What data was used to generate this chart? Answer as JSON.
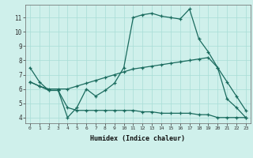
{
  "xlabel": "Humidex (Indice chaleur)",
  "bg_color": "#cff0eb",
  "line_color": "#1a6b5e",
  "x_ticks": [
    0,
    1,
    2,
    3,
    4,
    5,
    6,
    7,
    8,
    9,
    10,
    11,
    12,
    13,
    14,
    15,
    16,
    17,
    18,
    19,
    20,
    21,
    22,
    23
  ],
  "y_ticks": [
    4,
    5,
    6,
    7,
    8,
    9,
    10,
    11
  ],
  "ylim": [
    3.6,
    11.9
  ],
  "xlim": [
    -0.5,
    23.5
  ],
  "line1_x": [
    0,
    1,
    2,
    3,
    4,
    5,
    6,
    7,
    8,
    9,
    10,
    11,
    12,
    13,
    14,
    15,
    16,
    17,
    18,
    19,
    20,
    21,
    22,
    23
  ],
  "line1_y": [
    7.5,
    6.5,
    5.9,
    5.9,
    4.0,
    4.7,
    6.0,
    5.5,
    5.9,
    6.4,
    7.5,
    11.0,
    11.2,
    11.3,
    11.1,
    11.0,
    10.9,
    11.6,
    9.5,
    8.6,
    7.5,
    5.3,
    4.7,
    4.0
  ],
  "line2_x": [
    0,
    1,
    2,
    3,
    4,
    5,
    6,
    7,
    8,
    9,
    10,
    11,
    12,
    13,
    14,
    15,
    16,
    17,
    18,
    19,
    20,
    21,
    22,
    23
  ],
  "line2_y": [
    6.5,
    6.2,
    6.0,
    6.0,
    6.0,
    6.2,
    6.4,
    6.6,
    6.8,
    7.0,
    7.2,
    7.4,
    7.5,
    7.6,
    7.7,
    7.8,
    7.9,
    8.0,
    8.1,
    8.2,
    7.5,
    6.5,
    5.5,
    4.5
  ],
  "line3_x": [
    0,
    1,
    2,
    3,
    4,
    5,
    6,
    7,
    8,
    9,
    10,
    11,
    12,
    13,
    14,
    15,
    16,
    17,
    18,
    19,
    20,
    21,
    22,
    23
  ],
  "line3_y": [
    6.5,
    6.2,
    5.9,
    5.9,
    4.7,
    4.5,
    4.5,
    4.5,
    4.5,
    4.5,
    4.5,
    4.5,
    4.4,
    4.4,
    4.3,
    4.3,
    4.3,
    4.3,
    4.2,
    4.2,
    4.0,
    4.0,
    4.0,
    4.0
  ]
}
